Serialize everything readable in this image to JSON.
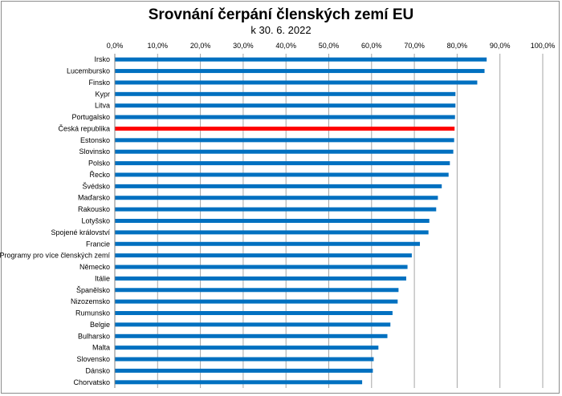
{
  "chart_data": {
    "type": "bar",
    "orientation": "horizontal",
    "title": "Srovnání čerpání členských zemí EU",
    "subtitle": "k 30. 6. 2022",
    "xlim": [
      0,
      100
    ],
    "tick_labels": [
      "0,0%",
      "10,0%",
      "20,0%",
      "30,0%",
      "40,0%",
      "50,0%",
      "60,0%",
      "70,0%",
      "80,0%",
      "90,0%",
      "100,0%"
    ],
    "grid": true,
    "categories": [
      "Irsko",
      "Lucembursko",
      "Finsko",
      "Kypr",
      "Litva",
      "Portugalsko",
      "Česká republika",
      "Estonsko",
      "Slovinsko",
      "Polsko",
      "Řecko",
      "Švédsko",
      "Maďarsko",
      "Rakousko",
      "Lotyšsko",
      "Spojené království",
      "Francie",
      "Programy pro více členských zemí",
      "Německo",
      "Itálie",
      "Španělsko",
      "Nizozemsko",
      "Rumunsko",
      "Belgie",
      "Bulharsko",
      "Malta",
      "Slovensko",
      "Dánsko",
      "Chorvatsko"
    ],
    "values": [
      86.9,
      86.4,
      84.7,
      79.6,
      79.6,
      79.5,
      79.4,
      79.3,
      79.1,
      78.3,
      78.0,
      76.4,
      75.5,
      75.1,
      73.5,
      73.3,
      71.3,
      69.4,
      68.4,
      68.1,
      66.3,
      66.1,
      64.9,
      64.4,
      63.7,
      61.6,
      60.5,
      60.3,
      57.8
    ],
    "highlight": "Česká republika",
    "colors": {
      "bar": "#0070c0",
      "highlight": "#ff0000",
      "grid": "#a6a6a6",
      "axis": "#808080"
    }
  }
}
